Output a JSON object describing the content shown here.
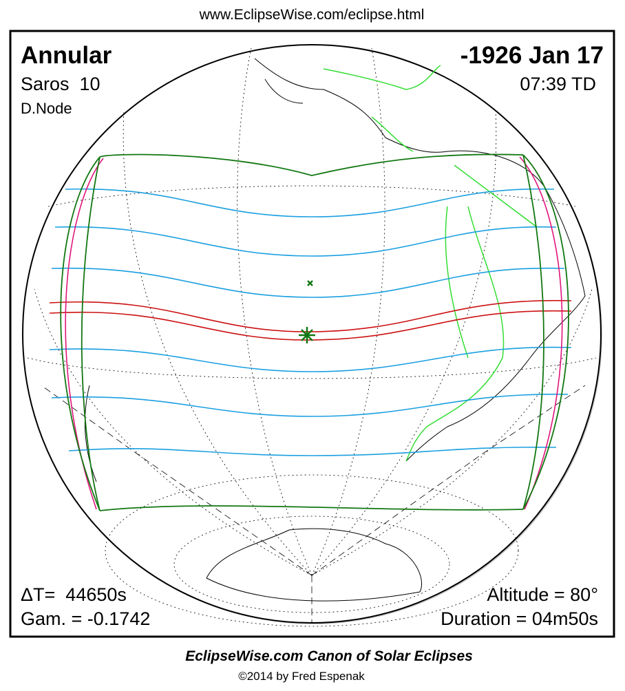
{
  "header": {
    "url": "www.EclipseWise.com/eclipse.html"
  },
  "panel": {
    "eclipse_type": "Annular",
    "date": "-1926 Jan 17",
    "saros": "Saros  10",
    "time": "07:39 TD",
    "node": "D.Node",
    "delta_t": "ΔT=  44650s",
    "gamma": "Gam. = -0.1742",
    "altitude": "Altitude = 80°",
    "duration": "Duration = 04m50s"
  },
  "footer": {
    "title": "EclipseWise.com Canon of Solar Eclipses",
    "copyright": "©2014 by Fred Espenak"
  }
}
